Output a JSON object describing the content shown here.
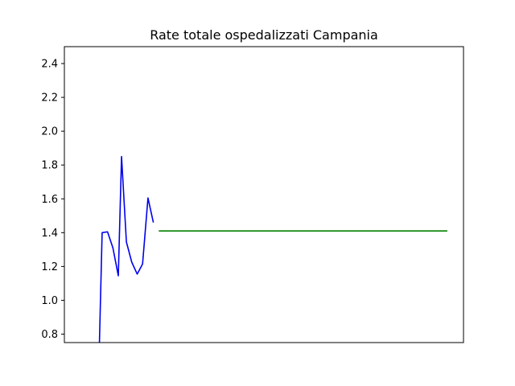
{
  "chart_data": {
    "type": "line",
    "title": "Rate totale ospedalizzati Campania",
    "xlabel": "",
    "ylabel": "",
    "xlim": [
      0,
      74
    ],
    "ylim": [
      0.75,
      2.5
    ],
    "yticks": [
      0.8,
      1.0,
      1.2,
      1.4,
      1.6,
      1.8,
      2.0,
      2.2,
      2.4
    ],
    "ytick_labels": [
      "0.8",
      "1.0",
      "1.2",
      "1.4",
      "1.6",
      "1.8",
      "2.0",
      "2.2",
      "2.4"
    ],
    "grid": false,
    "series": [
      {
        "color": "#0000ee",
        "x": [
          6.5,
          7,
          8,
          9,
          10,
          10.6,
          11.5,
          12.5,
          13.5,
          14.5,
          15.5,
          16.5
        ],
        "y": [
          0.75,
          1.4,
          1.405,
          1.31,
          1.145,
          1.85,
          1.345,
          1.225,
          1.155,
          1.215,
          1.605,
          1.46
        ]
      },
      {
        "color": "#008000",
        "x": [
          17.5,
          71
        ],
        "y": [
          1.41,
          1.41
        ]
      }
    ]
  }
}
